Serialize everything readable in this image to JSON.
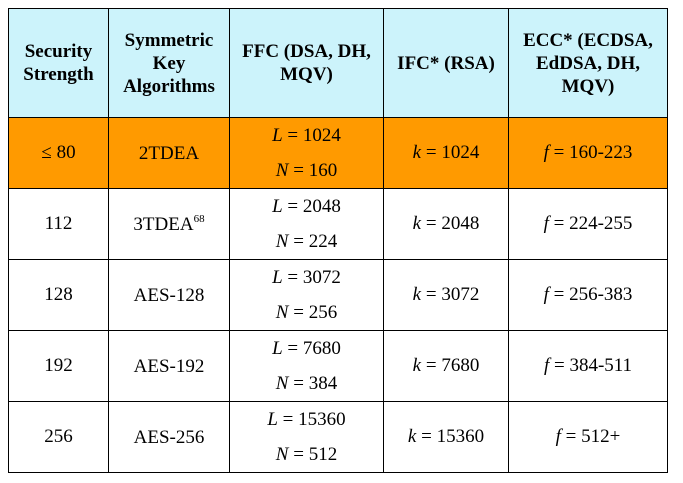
{
  "headers": [
    "Security Strength",
    "Symmetric Key Algorithms",
    "FFC (DSA, DH, MQV)",
    "IFC* (RSA)",
    "ECC* (ECDSA, EdDSA, DH, MQV)"
  ],
  "rows": [
    {
      "strength": "≤ 80",
      "algo": "2TDEA",
      "footnote": "",
      "ffc_L": "1024",
      "ffc_N": "160",
      "ifc_k": "1024",
      "ecc_f": "160-223"
    },
    {
      "strength": "112",
      "algo": "3TDEA",
      "footnote": "68",
      "ffc_L": "2048",
      "ffc_N": "224",
      "ifc_k": "2048",
      "ecc_f": "224-255"
    },
    {
      "strength": "128",
      "algo": "AES-128",
      "footnote": "",
      "ffc_L": "3072",
      "ffc_N": "256",
      "ifc_k": "3072",
      "ecc_f": "256-383"
    },
    {
      "strength": "192",
      "algo": "AES-192",
      "footnote": "",
      "ffc_L": "7680",
      "ffc_N": "384",
      "ifc_k": "7680",
      "ecc_f": "384-511"
    },
    {
      "strength": "256",
      "algo": "AES-256",
      "footnote": "",
      "ffc_L": "15360",
      "ffc_N": "512",
      "ifc_k": "15360",
      "ecc_f": "512+"
    }
  ],
  "symbols": {
    "L": "L",
    "N": "N",
    "k": "k",
    "f": "f",
    "eq": " = "
  },
  "highlight_color": "#ff9a00",
  "header_color": "#ccf3fb"
}
